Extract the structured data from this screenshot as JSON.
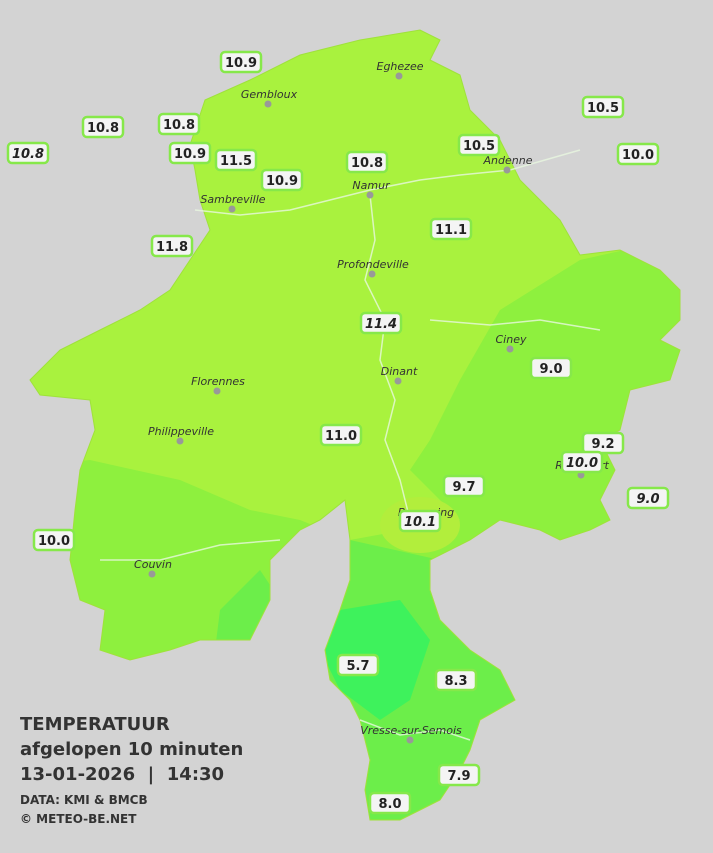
{
  "title": {
    "heading": "TEMPERATUUR",
    "subheading": "afgelopen 10 minuten",
    "timestamp": "13-01-2026  |  14:30",
    "source": "DATA: KMI & BMCB",
    "credit": "© METEO-BE.NET"
  },
  "cities": [
    "Eghezee",
    "Gembloux",
    "Andenne",
    "Namur",
    "Sambreville",
    "Profondeville",
    "Ciney",
    "Dinant",
    "Florennes",
    "Philippeville",
    "Rochefort",
    "Beauraing",
    "Couvin",
    "Vresse-sur-Semois"
  ],
  "stations": [
    {
      "reading": "10.9",
      "italic": false
    },
    {
      "reading": "10.8",
      "italic": false
    },
    {
      "reading": "10.8",
      "italic": false
    },
    {
      "reading": "10.8",
      "italic": true
    },
    {
      "reading": "10.9",
      "italic": false
    },
    {
      "reading": "11.5",
      "italic": false
    },
    {
      "reading": "10.9",
      "italic": false
    },
    {
      "reading": "10.8",
      "italic": false
    },
    {
      "reading": "10.5",
      "italic": false
    },
    {
      "reading": "10.5",
      "italic": false
    },
    {
      "reading": "10.0",
      "italic": false
    },
    {
      "reading": "11.8",
      "italic": false
    },
    {
      "reading": "11.1",
      "italic": false
    },
    {
      "reading": "11.4",
      "italic": true
    },
    {
      "reading": "9.0",
      "italic": false
    },
    {
      "reading": "11.0",
      "italic": false
    },
    {
      "reading": "9.2",
      "italic": false
    },
    {
      "reading": "10.0",
      "italic": true
    },
    {
      "reading": "9.7",
      "italic": false
    },
    {
      "reading": "9.0",
      "italic": true
    },
    {
      "reading": "10.1",
      "italic": true
    },
    {
      "reading": "10.0",
      "italic": false
    },
    {
      "reading": "5.7",
      "italic": false
    },
    {
      "reading": "8.3",
      "italic": false
    },
    {
      "reading": "7.9",
      "italic": false
    },
    {
      "reading": "8.0",
      "italic": false
    }
  ]
}
